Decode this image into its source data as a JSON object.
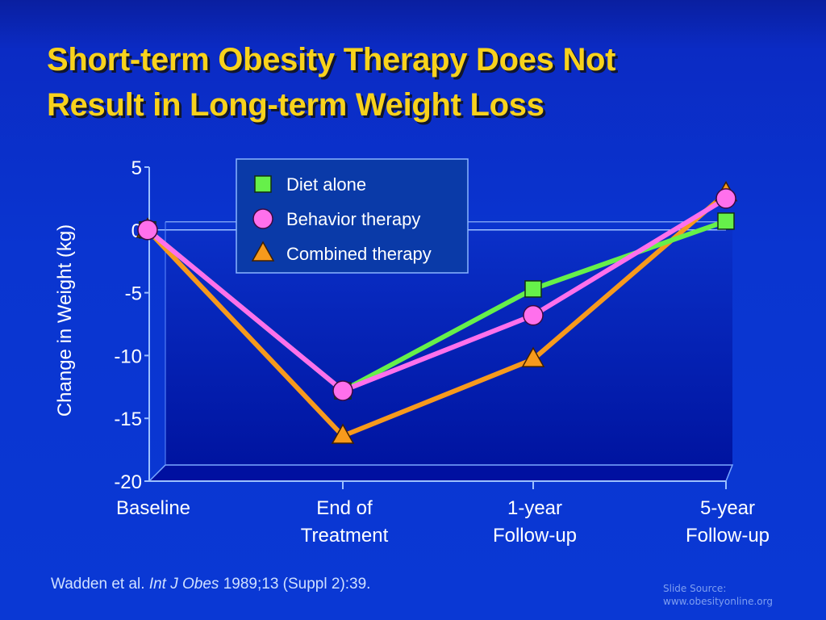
{
  "slide": {
    "title_line1": "Short-term Obesity Therapy Does Not",
    "title_line2": "Result in Long-term Weight Loss",
    "citation_authors": "Wadden et al.",
    "citation_journal": "Int J Obes",
    "citation_rest": "1989;13 (Suppl 2):39.",
    "source_line1": "Slide Source:",
    "source_line2": "www.obesityonline.org"
  },
  "colors": {
    "title": "#f8d21c",
    "diet": "#66f04a",
    "behavior": "#ff70ec",
    "combined": "#f79a1c"
  },
  "chart_data": {
    "type": "line",
    "title": "Short-term Obesity Therapy Does Not Result in Long-term Weight Loss",
    "xlabel": "",
    "ylabel": "Change in Weight (kg)",
    "categories": [
      [
        "Baseline"
      ],
      [
        "End of",
        "Treatment"
      ],
      [
        "1-year",
        "Follow-up"
      ],
      [
        "5-year",
        "Follow-up"
      ]
    ],
    "ylim": [
      -20,
      5
    ],
    "yticks": [
      5,
      0,
      -5,
      -10,
      -15,
      -20
    ],
    "legend_position": "top-center",
    "grid": false,
    "series": [
      {
        "name": "Diet alone",
        "marker": "square",
        "values": [
          0,
          -12.8,
          -4.7,
          0.7
        ]
      },
      {
        "name": "Behavior therapy",
        "marker": "circle",
        "values": [
          0,
          -12.8,
          -6.8,
          2.5
        ]
      },
      {
        "name": "Combined therapy",
        "marker": "triangle",
        "values": [
          0,
          -16.4,
          -10.3,
          2.9
        ]
      }
    ]
  }
}
